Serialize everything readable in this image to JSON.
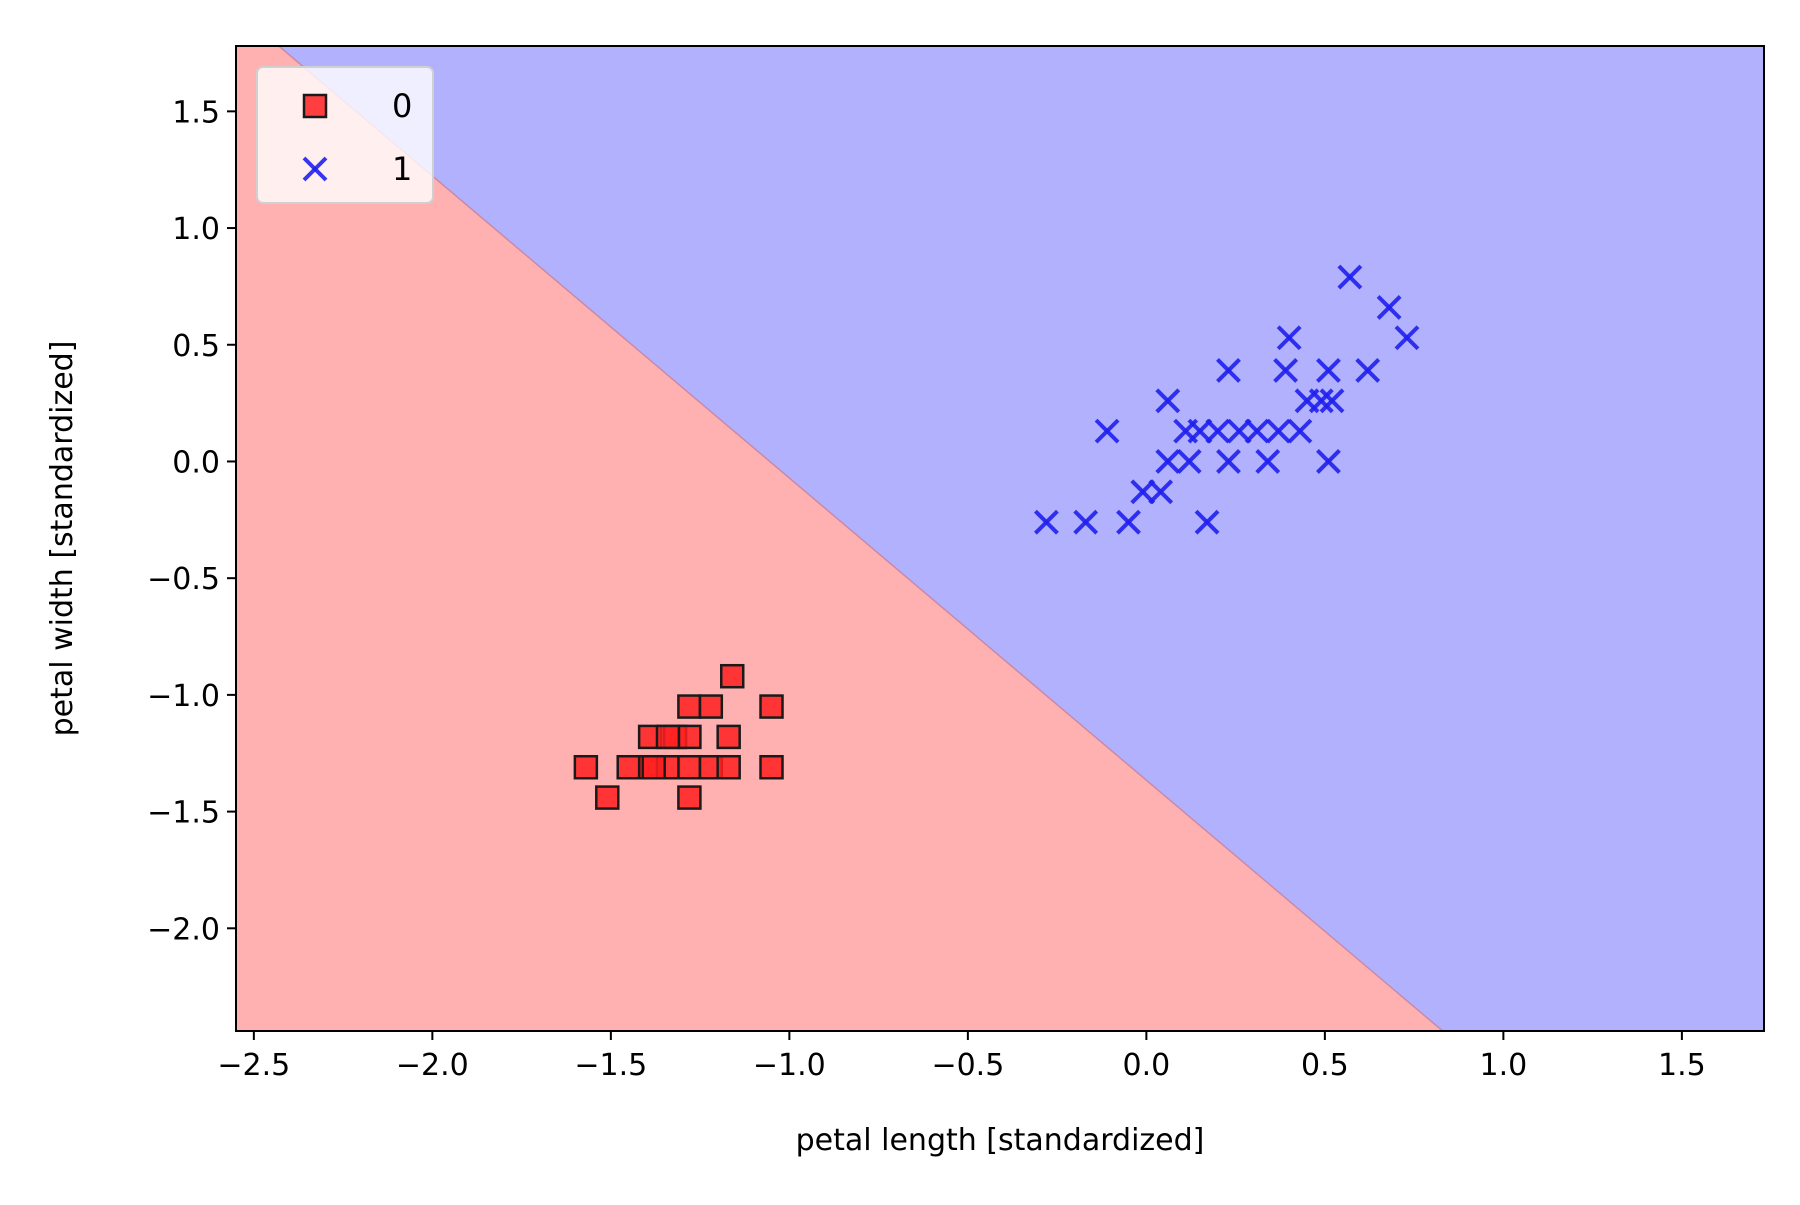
{
  "chart_data": {
    "type": "scatter",
    "title": "",
    "xlabel": "petal length [standardized]",
    "ylabel": "petal width [standardized]",
    "xlim": [
      -2.55,
      1.73
    ],
    "ylim": [
      -2.44,
      1.78
    ],
    "grid": false,
    "legend_position": "top-left",
    "x_ticks": [
      {
        "value": -2.5,
        "label": "−2.5"
      },
      {
        "value": -2.0,
        "label": "−2.0"
      },
      {
        "value": -1.5,
        "label": "−1.5"
      },
      {
        "value": -1.0,
        "label": "−1.0"
      },
      {
        "value": -0.5,
        "label": "−0.5"
      },
      {
        "value": 0.0,
        "label": "0.0"
      },
      {
        "value": 0.5,
        "label": "0.5"
      },
      {
        "value": 1.0,
        "label": "1.0"
      },
      {
        "value": 1.5,
        "label": "1.5"
      }
    ],
    "y_ticks": [
      {
        "value": 1.5,
        "label": "1.5"
      },
      {
        "value": 1.0,
        "label": "1.0"
      },
      {
        "value": 0.5,
        "label": "0.5"
      },
      {
        "value": 0.0,
        "label": "0.0"
      },
      {
        "value": -0.5,
        "label": "−0.5"
      },
      {
        "value": -1.0,
        "label": "−1.0"
      },
      {
        "value": -1.5,
        "label": "−1.5"
      },
      {
        "value": -2.0,
        "label": "−2.0"
      }
    ],
    "decision_regions": {
      "boundary_line": [
        [
          -2.43,
          1.78
        ],
        [
          0.83,
          -2.44
        ]
      ],
      "region_colors": {
        "0": "#ffb1b1",
        "1": "#b1b1fd"
      }
    },
    "series": [
      {
        "name": "0",
        "marker": "square",
        "color": "#ff2020",
        "edgecolor": "#1a1a1a",
        "points": [
          [
            -1.57,
            -1.31
          ],
          [
            -1.51,
            -1.44
          ],
          [
            -1.45,
            -1.31
          ],
          [
            -1.39,
            -1.18
          ],
          [
            -1.39,
            -1.31
          ],
          [
            -1.34,
            -1.31
          ],
          [
            -1.32,
            -1.18
          ],
          [
            -1.28,
            -1.05
          ],
          [
            -1.28,
            -1.18
          ],
          [
            -1.28,
            -1.31
          ],
          [
            -1.28,
            -1.44
          ],
          [
            -1.22,
            -1.05
          ],
          [
            -1.22,
            -1.31
          ],
          [
            -1.17,
            -1.18
          ],
          [
            -1.17,
            -1.31
          ],
          [
            -1.16,
            -0.92
          ],
          [
            -1.05,
            -1.05
          ],
          [
            -1.05,
            -1.31
          ],
          [
            -1.34,
            -1.18
          ],
          [
            -1.38,
            -1.31
          ]
        ]
      },
      {
        "name": "1",
        "marker": "x",
        "color": "#2020ee",
        "points": [
          [
            -0.28,
            -0.26
          ],
          [
            -0.17,
            -0.26
          ],
          [
            -0.11,
            0.13
          ],
          [
            -0.05,
            -0.26
          ],
          [
            -0.01,
            -0.13
          ],
          [
            0.04,
            -0.13
          ],
          [
            0.06,
            0.0
          ],
          [
            0.06,
            0.26
          ],
          [
            0.11,
            0.13
          ],
          [
            0.12,
            0.0
          ],
          [
            0.15,
            0.13
          ],
          [
            0.17,
            -0.26
          ],
          [
            0.2,
            0.13
          ],
          [
            0.23,
            0.0
          ],
          [
            0.23,
            0.39
          ],
          [
            0.26,
            0.13
          ],
          [
            0.31,
            0.13
          ],
          [
            0.34,
            0.0
          ],
          [
            0.37,
            0.13
          ],
          [
            0.39,
            0.39
          ],
          [
            0.4,
            0.53
          ],
          [
            0.43,
            0.13
          ],
          [
            0.45,
            0.26
          ],
          [
            0.49,
            0.26
          ],
          [
            0.51,
            0.0
          ],
          [
            0.51,
            0.39
          ],
          [
            0.52,
            0.26
          ],
          [
            0.57,
            0.79
          ],
          [
            0.62,
            0.39
          ],
          [
            0.68,
            0.66
          ],
          [
            0.73,
            0.53
          ]
        ]
      }
    ]
  }
}
